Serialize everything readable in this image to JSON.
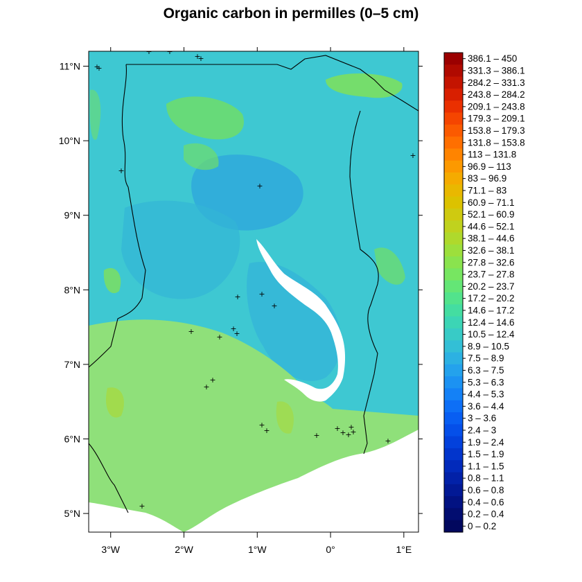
{
  "title": "Organic carbon in permilles (0–5 cm)",
  "map": {
    "x_axis_labels": [
      "3°W",
      "2°W",
      "1°W",
      "0°",
      "1°E"
    ],
    "x_axis_values": [
      -3,
      -2,
      -1,
      0,
      1
    ],
    "y_axis_labels": [
      "11°N",
      "10°N",
      "9°N",
      "8°N",
      "7°N",
      "6°N",
      "5°N"
    ],
    "y_axis_values": [
      11,
      10,
      9,
      8,
      7,
      6,
      5
    ],
    "lon_range": [
      -3.3,
      1.2
    ],
    "lat_range": [
      4.75,
      11.2
    ],
    "background_color": "#3ec8d2",
    "southern_zone_color": "#8fe07a",
    "sea_color": "#ffffff",
    "lake_color": "#ffffff",
    "border_color": "#000000",
    "sample_marker": "+"
  },
  "legend": {
    "classes": [
      {
        "label": "386.1 – 450",
        "color": "#9b0000"
      },
      {
        "label": "331.3 – 386.1",
        "color": "#b00a00"
      },
      {
        "label": "284.2 – 331.3",
        "color": "#c41400"
      },
      {
        "label": "243.8 – 284.2",
        "color": "#d81f00"
      },
      {
        "label": "209.1 – 243.8",
        "color": "#ea3000"
      },
      {
        "label": "179.3 – 209.1",
        "color": "#f54500"
      },
      {
        "label": "153.8 – 179.3",
        "color": "#fb5a00"
      },
      {
        "label": "131.8 – 153.8",
        "color": "#ff6f00"
      },
      {
        "label": "113 – 131.8",
        "color": "#ff8400"
      },
      {
        "label": "96.9 – 113",
        "color": "#fc9900"
      },
      {
        "label": "83 – 96.9",
        "color": "#f5ab00"
      },
      {
        "label": "71.1 – 83",
        "color": "#e9b800"
      },
      {
        "label": "60.9 – 71.1",
        "color": "#dcc200"
      },
      {
        "label": "52.1 – 60.9",
        "color": "#cfca10"
      },
      {
        "label": "44.6 – 52.1",
        "color": "#c0d21e"
      },
      {
        "label": "38.1 – 44.6",
        "color": "#afd92c"
      },
      {
        "label": "32.6 – 38.1",
        "color": "#9ddf3c"
      },
      {
        "label": "27.8 – 32.6",
        "color": "#8ae34e"
      },
      {
        "label": "23.7 – 27.8",
        "color": "#77e661"
      },
      {
        "label": "20.2 – 23.7",
        "color": "#64e676"
      },
      {
        "label": "17.2 – 20.2",
        "color": "#52e38c"
      },
      {
        "label": "14.6 – 17.2",
        "color": "#44dda1"
      },
      {
        "label": "12.4 – 14.6",
        "color": "#3cd5b5"
      },
      {
        "label": "10.5 – 12.4",
        "color": "#38cbc6"
      },
      {
        "label": "8.9 – 10.5",
        "color": "#33bfd6"
      },
      {
        "label": "7.5 – 8.9",
        "color": "#2cb1e2"
      },
      {
        "label": "6.3 – 7.5",
        "color": "#24a2ec"
      },
      {
        "label": "5.3 – 6.3",
        "color": "#1c92f2"
      },
      {
        "label": "4.4 – 5.3",
        "color": "#1481f6"
      },
      {
        "label": "3.6 – 4.4",
        "color": "#0d6ff6"
      },
      {
        "label": "3 – 3.6",
        "color": "#085ef2"
      },
      {
        "label": "2.4 – 3",
        "color": "#054fe9"
      },
      {
        "label": "1.9 – 2.4",
        "color": "#0341dc"
      },
      {
        "label": "1.5 – 1.9",
        "color": "#0235cc"
      },
      {
        "label": "1.1 – 1.5",
        "color": "#022abb"
      },
      {
        "label": "0.8 – 1.1",
        "color": "#0221a8"
      },
      {
        "label": "0.6 – 0.8",
        "color": "#021995"
      },
      {
        "label": "0.4 – 0.6",
        "color": "#021282"
      },
      {
        "label": "0.2 – 0.4",
        "color": "#020d70"
      },
      {
        "label": "0 – 0.2",
        "color": "#02085e"
      }
    ]
  }
}
